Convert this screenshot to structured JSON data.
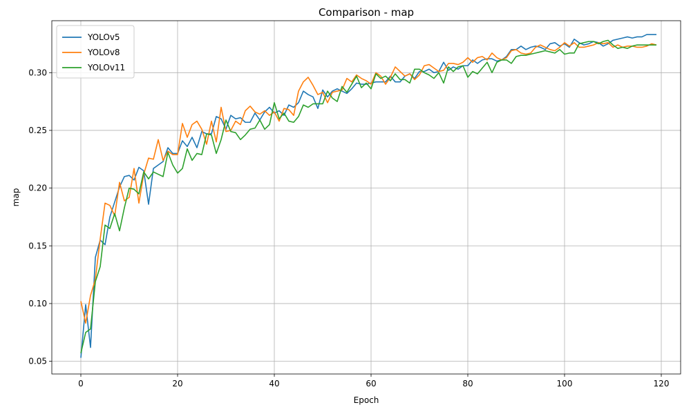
{
  "chart_data": {
    "type": "line",
    "title": "Comparison - map",
    "xlabel": "Epoch",
    "ylabel": "map",
    "xlim": [
      -6,
      124
    ],
    "ylim": [
      0.039,
      0.345
    ],
    "xticks": [
      0,
      20,
      40,
      60,
      80,
      100,
      120
    ],
    "yticks": [
      0.05,
      0.1,
      0.15,
      0.2,
      0.25,
      0.3
    ],
    "ytick_labels": [
      "0.05",
      "0.10",
      "0.15",
      "0.20",
      "0.25",
      "0.30"
    ],
    "grid": true,
    "legend_position": "upper-left",
    "series": [
      {
        "name": "YOLOv5",
        "color": "#1f77b4",
        "values": [
          0.053,
          0.099,
          0.062,
          0.14,
          0.155,
          0.151,
          0.175,
          0.188,
          0.201,
          0.21,
          0.211,
          0.207,
          0.218,
          0.215,
          0.186,
          0.217,
          0.22,
          0.223,
          0.235,
          0.23,
          0.23,
          0.241,
          0.236,
          0.244,
          0.235,
          0.249,
          0.247,
          0.247,
          0.262,
          0.26,
          0.251,
          0.263,
          0.26,
          0.261,
          0.257,
          0.257,
          0.265,
          0.259,
          0.266,
          0.27,
          0.265,
          0.267,
          0.263,
          0.272,
          0.27,
          0.274,
          0.284,
          0.281,
          0.279,
          0.269,
          0.285,
          0.279,
          0.284,
          0.286,
          0.284,
          0.282,
          0.286,
          0.291,
          0.29,
          0.29,
          0.291,
          0.292,
          0.292,
          0.292,
          0.297,
          0.292,
          0.292,
          0.297,
          0.299,
          0.295,
          0.301,
          0.301,
          0.303,
          0.3,
          0.301,
          0.309,
          0.302,
          0.305,
          0.303,
          0.306,
          0.306,
          0.311,
          0.308,
          0.311,
          0.312,
          0.312,
          0.31,
          0.311,
          0.314,
          0.32,
          0.32,
          0.323,
          0.32,
          0.322,
          0.323,
          0.322,
          0.32,
          0.325,
          0.326,
          0.323,
          0.325,
          0.322,
          0.329,
          0.326,
          0.324,
          0.325,
          0.327,
          0.326,
          0.323,
          0.325,
          0.328,
          0.329,
          0.33,
          0.331,
          0.33,
          0.331,
          0.331,
          0.333,
          0.333,
          0.333
        ]
      },
      {
        "name": "YOLOv8",
        "color": "#ff7f0e",
        "values": [
          0.102,
          0.083,
          0.107,
          0.121,
          0.156,
          0.187,
          0.185,
          0.176,
          0.205,
          0.189,
          0.192,
          0.217,
          0.187,
          0.212,
          0.226,
          0.225,
          0.242,
          0.224,
          0.232,
          0.229,
          0.229,
          0.256,
          0.244,
          0.255,
          0.258,
          0.251,
          0.238,
          0.258,
          0.24,
          0.27,
          0.249,
          0.25,
          0.258,
          0.255,
          0.267,
          0.271,
          0.266,
          0.264,
          0.267,
          0.263,
          0.266,
          0.258,
          0.269,
          0.268,
          0.263,
          0.284,
          0.292,
          0.296,
          0.289,
          0.281,
          0.283,
          0.274,
          0.283,
          0.284,
          0.285,
          0.295,
          0.292,
          0.298,
          0.295,
          0.293,
          0.29,
          0.3,
          0.297,
          0.29,
          0.296,
          0.305,
          0.301,
          0.297,
          0.299,
          0.294,
          0.298,
          0.306,
          0.307,
          0.304,
          0.301,
          0.302,
          0.308,
          0.308,
          0.307,
          0.309,
          0.313,
          0.309,
          0.313,
          0.314,
          0.311,
          0.317,
          0.313,
          0.311,
          0.313,
          0.319,
          0.32,
          0.317,
          0.316,
          0.317,
          0.322,
          0.324,
          0.322,
          0.32,
          0.319,
          0.322,
          0.326,
          0.323,
          0.326,
          0.322,
          0.322,
          0.323,
          0.324,
          0.326,
          0.325,
          0.326,
          0.322,
          0.324,
          0.322,
          0.323,
          0.323,
          0.322,
          0.322,
          0.323,
          0.325,
          0.324
        ]
      },
      {
        "name": "YOLOv11",
        "color": "#2ca02c",
        "values": [
          0.057,
          0.075,
          0.078,
          0.119,
          0.132,
          0.168,
          0.165,
          0.178,
          0.163,
          0.183,
          0.2,
          0.199,
          0.195,
          0.214,
          0.208,
          0.214,
          0.212,
          0.21,
          0.231,
          0.22,
          0.213,
          0.217,
          0.234,
          0.224,
          0.23,
          0.229,
          0.247,
          0.246,
          0.23,
          0.242,
          0.259,
          0.249,
          0.248,
          0.242,
          0.246,
          0.251,
          0.252,
          0.259,
          0.251,
          0.255,
          0.274,
          0.26,
          0.265,
          0.258,
          0.257,
          0.262,
          0.272,
          0.27,
          0.273,
          0.273,
          0.273,
          0.284,
          0.278,
          0.275,
          0.288,
          0.283,
          0.29,
          0.297,
          0.287,
          0.291,
          0.286,
          0.299,
          0.295,
          0.297,
          0.293,
          0.299,
          0.294,
          0.294,
          0.291,
          0.303,
          0.303,
          0.3,
          0.298,
          0.295,
          0.3,
          0.291,
          0.305,
          0.301,
          0.305,
          0.306,
          0.296,
          0.301,
          0.299,
          0.304,
          0.309,
          0.3,
          0.309,
          0.311,
          0.311,
          0.308,
          0.314,
          0.315,
          0.315,
          0.316,
          0.317,
          0.318,
          0.319,
          0.318,
          0.317,
          0.32,
          0.316,
          0.317,
          0.317,
          0.325,
          0.326,
          0.327,
          0.327,
          0.325,
          0.327,
          0.328,
          0.324,
          0.321,
          0.322,
          0.321,
          0.323,
          0.324,
          0.324,
          0.324,
          0.324,
          0.324
        ]
      }
    ]
  }
}
